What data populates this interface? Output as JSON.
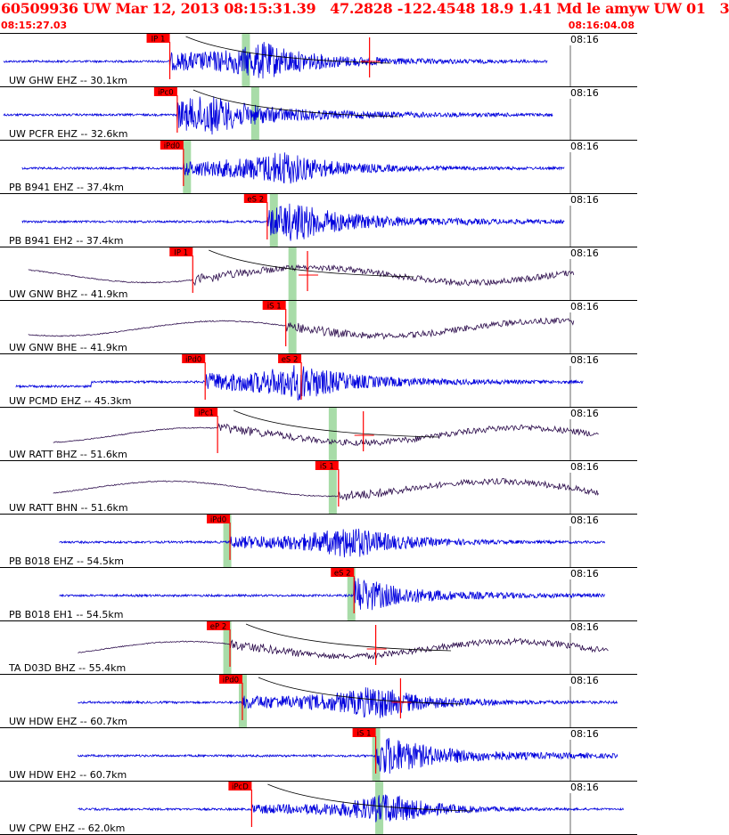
{
  "header": {
    "title": "60509936 UW Mar 12, 2013 08:15:31.39   47.2828 -122.4548 18.9 1.41 Md le amyw UW 01   3",
    "start_time": "08:15:27.03",
    "end_time": "08:16:04.08"
  },
  "colors": {
    "header_text": "#ff0000",
    "trace_ehz": "#0000dd",
    "trace_bb": "#2a0a4a",
    "pick_box": "#ff0000",
    "pick_band": "#a8dca8",
    "decay_curve": "#000000",
    "grid": "#000000"
  },
  "chart_data": {
    "type": "line",
    "title": "60509936 UW Mar 12, 2013 08:15:31.39   47.2828 -122.4548 18.9 1.41 Md le amyw UW 01   3",
    "x_range": [
      "08:15:27.03",
      "08:16:04.08"
    ],
    "minute_tick_label": "08:16",
    "traces": [
      {
        "label": "UW GHW EHZ -- 30.1km",
        "kind": "short",
        "t0": 0.0,
        "t1": 0.877,
        "onset": 0.268,
        "amp": 0.22,
        "maxi": 0.42,
        "picks": [
          {
            "label": "IP 1",
            "x": 0.268
          }
        ],
        "band": 0.39,
        "redline": 0.59,
        "decay": true
      },
      {
        "label": "UW PCFR EHZ -- 32.6km",
        "kind": "short",
        "t0": 0.0,
        "t1": 0.886,
        "onset": 0.28,
        "amp": 0.22,
        "maxi": 0.33,
        "picks": [
          {
            "label": "iPc0",
            "x": 0.28
          }
        ],
        "band": 0.405,
        "redline": 0.0,
        "decay": true
      },
      {
        "label": "PB B941 EHZ -- 37.4km",
        "kind": "short",
        "t0": 0.03,
        "t1": 0.905,
        "onset": 0.29,
        "amp": 0.18,
        "maxi": 0.45,
        "picks": [
          {
            "label": "iPd0",
            "x": 0.29
          }
        ],
        "band": 0.295,
        "redline": 0.0,
        "decay": false
      },
      {
        "label": "PB B941 EH2 -- 37.4km",
        "kind": "short",
        "t0": 0.03,
        "t1": 0.905,
        "onset": 0.425,
        "amp": 0.2,
        "maxi": 0.47,
        "picks": [
          {
            "label": "eS 2",
            "x": 0.425
          }
        ],
        "band": 0.435,
        "redline": 0.0,
        "decay": false
      },
      {
        "label": "UW GNW BHZ -- 41.9km",
        "kind": "long",
        "t0": 0.04,
        "t1": 0.92,
        "onset": 0.305,
        "amp": 0.35,
        "maxi": 0.0,
        "picks": [
          {
            "label": "IP 1",
            "x": 0.305
          }
        ],
        "band": 0.465,
        "redline": 0.49,
        "decay": true
      },
      {
        "label": "UW GNW BHE -- 41.9km",
        "kind": "long",
        "t0": 0.04,
        "t1": 0.92,
        "onset": 0.455,
        "amp": 0.35,
        "maxi": 0.0,
        "picks": [
          {
            "label": "iS 1",
            "x": 0.455
          }
        ],
        "band": 0.465,
        "redline": 0.0,
        "decay": false
      },
      {
        "label": "UW PCMD EHZ -- 45.3km",
        "kind": "step",
        "t0": 0.02,
        "t1": 0.935,
        "onset": 0.325,
        "amp": 0.22,
        "maxi": 0.48,
        "picks": [
          {
            "label": "iPd0",
            "x": 0.325
          },
          {
            "label": "eS 2",
            "x": 0.48
          }
        ],
        "band": 0.0,
        "redline": 0.0,
        "decay": false
      },
      {
        "label": "UW RATT BHZ -- 51.6km",
        "kind": "long",
        "t0": 0.08,
        "t1": 0.96,
        "onset": 0.345,
        "amp": 0.42,
        "maxi": 0.0,
        "picks": [
          {
            "label": "iPc1",
            "x": 0.345
          }
        ],
        "band": 0.53,
        "redline": 0.58,
        "decay": true
      },
      {
        "label": "UW RATT BHN -- 51.6km",
        "kind": "long",
        "t0": 0.08,
        "t1": 0.96,
        "onset": 0.54,
        "amp": 0.3,
        "maxi": 0.0,
        "picks": [
          {
            "label": "iS 1",
            "x": 0.54
          }
        ],
        "band": 0.53,
        "redline": 0.0,
        "decay": false
      },
      {
        "label": "PB B018 EHZ -- 54.5km",
        "kind": "short",
        "t0": 0.09,
        "t1": 0.97,
        "onset": 0.365,
        "amp": 0.16,
        "maxi": 0.56,
        "picks": [
          {
            "label": "iPd0",
            "x": 0.365
          }
        ],
        "band": 0.36,
        "redline": 0.0,
        "decay": false
      },
      {
        "label": "PB B018 EH1 -- 54.5km",
        "kind": "short",
        "t0": 0.09,
        "t1": 0.97,
        "onset": 0.565,
        "amp": 0.15,
        "maxi": 0.57,
        "picks": [
          {
            "label": "eS 2",
            "x": 0.565
          }
        ],
        "band": 0.56,
        "redline": 0.0,
        "decay": false
      },
      {
        "label": "TA D03D BHZ -- 55.4km",
        "kind": "long",
        "t0": 0.12,
        "t1": 0.975,
        "onset": 0.365,
        "amp": 0.4,
        "maxi": 0.0,
        "picks": [
          {
            "label": "eP 2",
            "x": 0.365
          }
        ],
        "band": 0.36,
        "redline": 0.6,
        "decay": true
      },
      {
        "label": "UW HDW EHZ -- 60.7km",
        "kind": "short",
        "t0": 0.12,
        "t1": 0.99,
        "onset": 0.385,
        "amp": 0.18,
        "maxi": 0.6,
        "picks": [
          {
            "label": "iPd0",
            "x": 0.385
          }
        ],
        "band": 0.385,
        "redline": 0.64,
        "decay": true
      },
      {
        "label": "UW HDW EH2 -- 60.7km",
        "kind": "short",
        "t0": 0.12,
        "t1": 0.99,
        "onset": 0.6,
        "amp": 0.18,
        "maxi": 0.62,
        "picks": [
          {
            "label": "iS 1",
            "x": 0.6
          }
        ],
        "band": 0.6,
        "redline": 0.0,
        "decay": false
      },
      {
        "label": "UW CPW EHZ -- 62.0km",
        "kind": "short",
        "t0": 0.12,
        "t1": 1.0,
        "onset": 0.4,
        "amp": 0.12,
        "maxi": 0.62,
        "picks": [
          {
            "label": "iPcD",
            "x": 0.4
          }
        ],
        "band": 0.605,
        "redline": 0.0,
        "decay": true
      }
    ]
  }
}
